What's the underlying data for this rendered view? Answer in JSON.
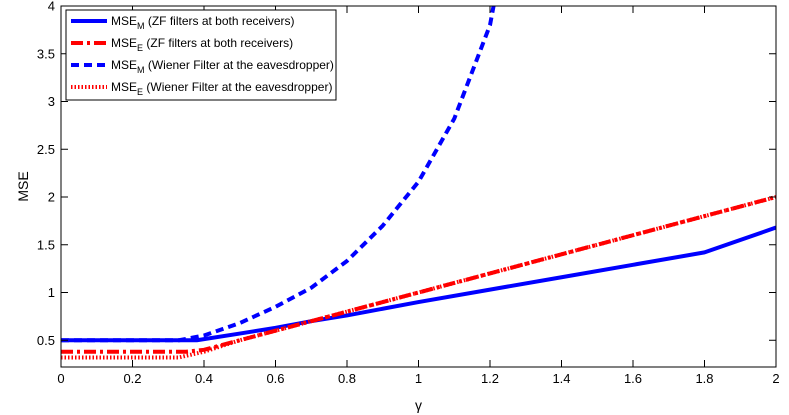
{
  "chart_data": {
    "type": "line",
    "xlabel": "γ",
    "ylabel": "MSE",
    "xlim": [
      0,
      2
    ],
    "ylim": [
      0.22,
      4
    ],
    "xticks": [
      "0",
      "0.2",
      "0.4",
      "0.6",
      "0.8",
      "1",
      "1.2",
      "1.4",
      "1.6",
      "1.8",
      "2"
    ],
    "yticks": [
      "0.5",
      "1",
      "1.5",
      "2",
      "2.5",
      "3",
      "3.5",
      "4"
    ],
    "grid": false,
    "legend_position": "top-left",
    "series": [
      {
        "name": "MSE_M (ZF filters at both receivers)",
        "legend": {
          "base": "MSE",
          "sub": "M",
          "text": " (ZF filters at both receivers)"
        },
        "color": "#0000ff",
        "line_style": "solid",
        "points": [
          [
            0,
            0.5
          ],
          [
            0.38,
            0.5
          ],
          [
            0.5,
            0.57
          ],
          [
            0.6,
            0.63
          ],
          [
            0.7,
            0.7
          ],
          [
            0.8,
            0.76
          ],
          [
            1.0,
            0.9
          ],
          [
            1.2,
            1.03
          ],
          [
            1.4,
            1.16
          ],
          [
            1.6,
            1.29
          ],
          [
            1.8,
            1.42
          ],
          [
            2.0,
            1.68
          ]
        ]
      },
      {
        "name": "MSE_E (ZF filters at both receivers)",
        "legend": {
          "base": "MSE",
          "sub": "E",
          "text": " (ZF filters at both receivers)"
        },
        "color": "#ff0000",
        "line_style": "dash-dot",
        "points": [
          [
            0,
            0.38
          ],
          [
            0.35,
            0.38
          ],
          [
            0.4,
            0.4
          ],
          [
            0.5,
            0.5
          ],
          [
            0.6,
            0.6
          ],
          [
            0.7,
            0.7
          ],
          [
            0.8,
            0.8
          ],
          [
            1.0,
            1.0
          ],
          [
            1.2,
            1.2
          ],
          [
            1.4,
            1.4
          ],
          [
            1.6,
            1.6
          ],
          [
            1.8,
            1.8
          ],
          [
            2.0,
            2.0
          ]
        ]
      },
      {
        "name": "MSE_M (Wiener Filter at the eavesdropper)",
        "legend": {
          "base": "MSE",
          "sub": "M",
          "text": " (Wiener Filter at the eavesdropper)"
        },
        "color": "#0000ff",
        "line_style": "dashed",
        "points": [
          [
            0,
            0.5
          ],
          [
            0.33,
            0.5
          ],
          [
            0.4,
            0.55
          ],
          [
            0.5,
            0.68
          ],
          [
            0.6,
            0.85
          ],
          [
            0.7,
            1.05
          ],
          [
            0.8,
            1.33
          ],
          [
            0.9,
            1.7
          ],
          [
            1.0,
            2.16
          ],
          [
            1.1,
            2.82
          ],
          [
            1.2,
            3.8
          ],
          [
            1.21,
            4.0
          ]
        ]
      },
      {
        "name": "MSE_E (Wiener Filter at the eavesdropper)",
        "legend": {
          "base": "MSE",
          "sub": "E",
          "text": " (Wiener Filter at the eavesdropper)"
        },
        "color": "#ff0000",
        "line_style": "dotted",
        "points": [
          [
            0,
            0.32
          ],
          [
            0.33,
            0.32
          ],
          [
            0.4,
            0.38
          ],
          [
            0.5,
            0.5
          ],
          [
            0.6,
            0.6
          ],
          [
            0.7,
            0.7
          ],
          [
            0.8,
            0.8
          ],
          [
            1.0,
            1.0
          ],
          [
            1.2,
            1.2
          ],
          [
            1.4,
            1.4
          ],
          [
            1.6,
            1.6
          ],
          [
            1.8,
            1.8
          ],
          [
            2.0,
            2.0
          ]
        ]
      }
    ]
  }
}
